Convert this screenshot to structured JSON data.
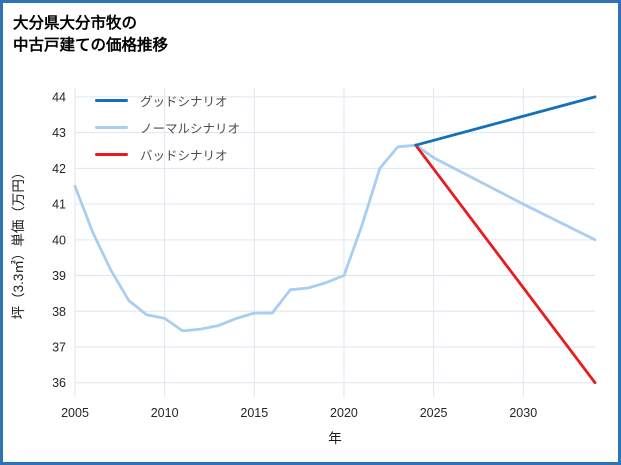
{
  "header": {
    "title_lines": [
      "大分県大分市牧の",
      "中古戸建ての価格推移"
    ]
  },
  "colors": {
    "border": "#2e74b5",
    "grid": "#dde6f0",
    "tick_label": "#262626",
    "legend_label": "#4d4d4d",
    "good": "#1470b8",
    "normal": "#a8cef1",
    "bad": "#e81b1e"
  },
  "chart_data": {
    "type": "line",
    "title": "大分県大分市牧の中古戸建ての価格推移",
    "xlabel": "年",
    "ylabel": "坪（3.3㎡）単価（万円）",
    "xlim": [
      2005,
      2034
    ],
    "ylim": [
      35.6,
      44.25
    ],
    "xticks": [
      2005,
      2010,
      2015,
      2020,
      2025,
      2030
    ],
    "yticks": [
      36,
      37,
      38,
      39,
      40,
      41,
      42,
      43,
      44
    ],
    "grid": true,
    "legend_position": "upper left",
    "series": [
      {
        "id": "good",
        "name": "グッドシナリオ",
        "color": "#1470b8",
        "x": [
          2024,
          2034
        ],
        "y": [
          42.65,
          44.0
        ]
      },
      {
        "id": "normal",
        "name": "ノーマルシナリオ",
        "color": "#a8cef1",
        "x": [
          2005,
          2006,
          2007,
          2008,
          2009,
          2010,
          2011,
          2012,
          2013,
          2014,
          2015,
          2016,
          2017,
          2018,
          2019,
          2020,
          2021,
          2022,
          2023,
          2024,
          2025,
          2030,
          2034
        ],
        "y": [
          41.5,
          40.2,
          39.15,
          38.3,
          37.9,
          37.8,
          37.45,
          37.5,
          37.6,
          37.8,
          37.95,
          37.95,
          38.6,
          38.65,
          38.8,
          39.0,
          40.4,
          42.0,
          42.6,
          42.65,
          42.3,
          41.0,
          40.0
        ]
      },
      {
        "id": "bad",
        "name": "バッドシナリオ",
        "color": "#e81b1e",
        "x": [
          2024,
          2034
        ],
        "y": [
          42.65,
          36.0
        ]
      }
    ]
  }
}
